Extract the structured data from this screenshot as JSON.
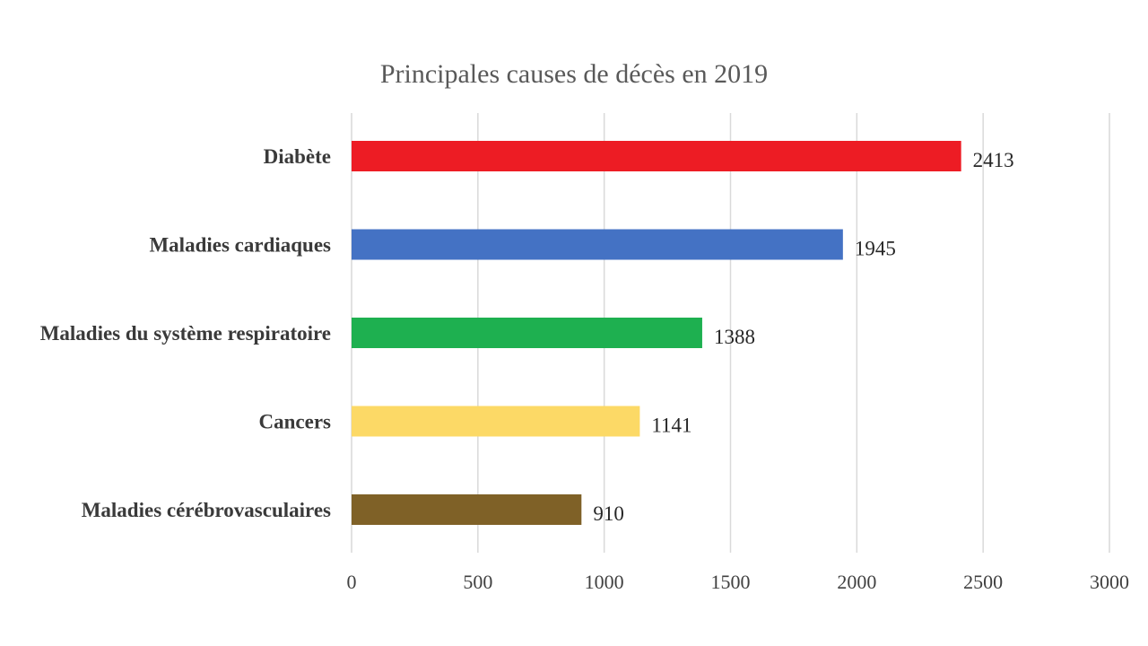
{
  "chart_data": {
    "type": "bar",
    "orientation": "horizontal",
    "title": "Principales causes de décès en 2019",
    "xlabel": "",
    "ylabel": "",
    "categories": [
      "Diabète",
      "Maladies cardiaques",
      "Maladies du système respiratoire",
      "Cancers",
      "Maladies cérébrovasculaires"
    ],
    "values": [
      2413,
      1945,
      1388,
      1141,
      910
    ],
    "colors": [
      "#ed1c24",
      "#4472c4",
      "#1eb050",
      "#fcd966",
      "#7f6127"
    ],
    "xlim": [
      0,
      3000
    ],
    "xticks": [
      "0",
      "500",
      "1000",
      "1500",
      "2000",
      "2500",
      "3000"
    ],
    "grid": true,
    "legend": "none"
  }
}
